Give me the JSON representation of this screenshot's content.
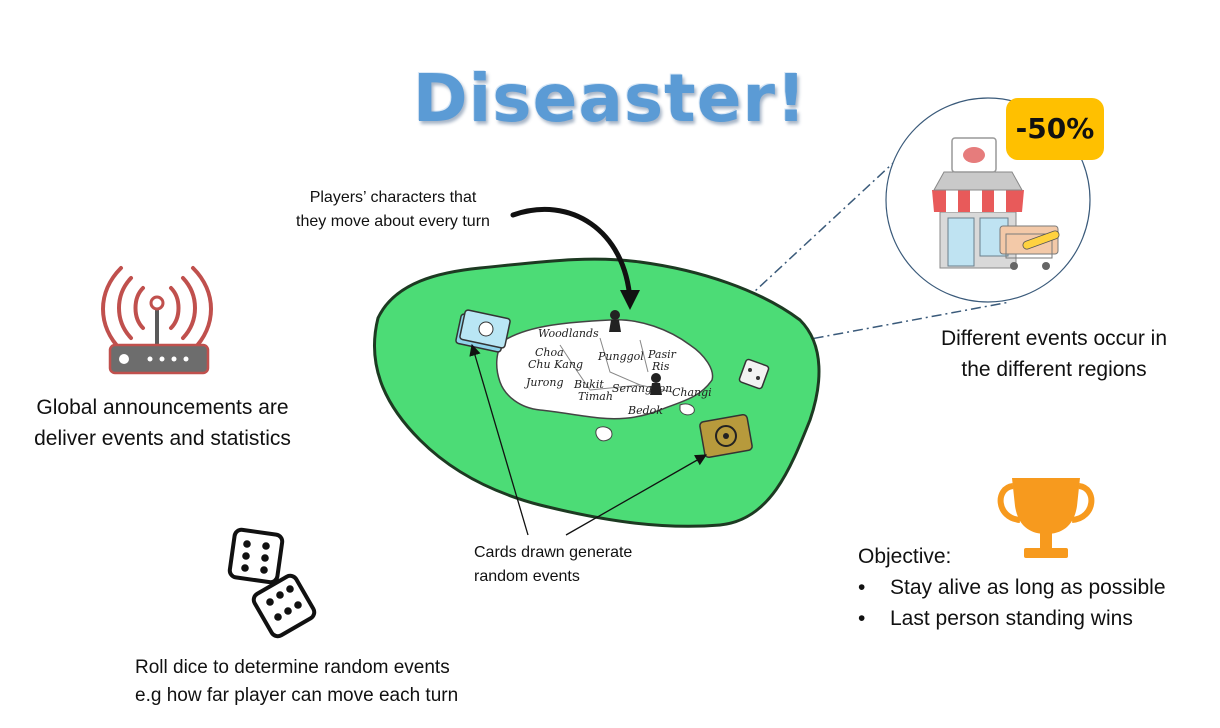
{
  "title": "Diseaster!",
  "captions": {
    "characters": [
      "Players’ characters that",
      "they move about every turn"
    ],
    "announcements": [
      "Global announcements are",
      "deliver events and statistics"
    ],
    "regions": [
      "Different events occur in",
      "the different regions"
    ],
    "cards": [
      "Cards drawn generate",
      "random events"
    ],
    "dice": [
      "Roll dice to determine random events",
      "e.g how far player can move each turn"
    ],
    "objective": {
      "heading": "Objective:",
      "items": [
        "Stay alive as long as possible",
        "Last person standing wins"
      ]
    }
  },
  "discount_badge": "-50%",
  "map_labels": [
    "Woodlands",
    "Choa",
    "Chu Kang",
    "Punggol",
    "Pasir",
    "Ris",
    "Jurong",
    "Bukit",
    "Timah",
    "Serangoon",
    "Changi",
    "Bedok"
  ],
  "colors": {
    "title": "#5b9bd5",
    "board": "#4cdc76",
    "antenna": "#c0504d",
    "trophy": "#f79a1e",
    "badge": "#ffc000",
    "leader_line": "#3a5a7a"
  },
  "icons": [
    "antenna-icon",
    "dice-icon",
    "trophy-icon",
    "shop-icon",
    "player-pawn-icon",
    "card-icon"
  ]
}
